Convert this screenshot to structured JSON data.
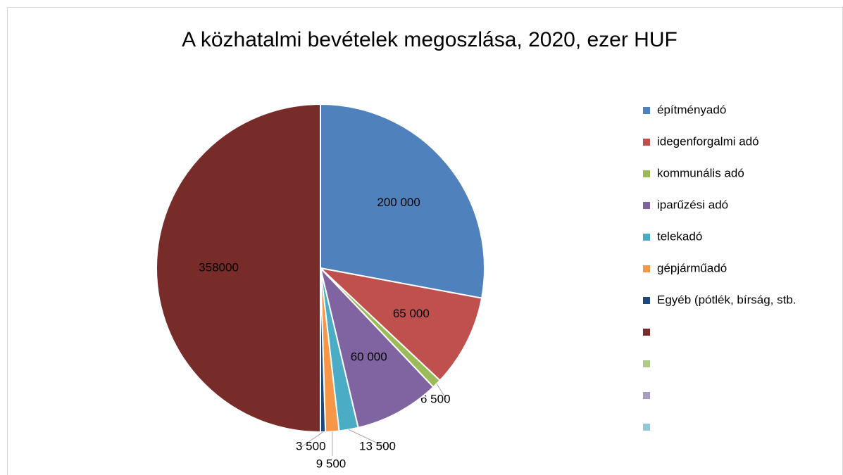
{
  "chart_data": {
    "type": "pie",
    "title": "A közhatalmi bevételek megoszlása, 2020, ezer HUF",
    "categories": [
      "építményadó",
      "idegenforgalmi adó",
      "kommunális adó",
      "iparűzési adó",
      "telekadó",
      "gépjárműadó",
      "Egyéb (pótlék, bírság, stb.",
      null,
      null,
      null,
      null
    ],
    "values": [
      200000,
      65000,
      6500,
      60000,
      13500,
      9500,
      3500,
      358000,
      0,
      0,
      0
    ],
    "value_labels": [
      "200 000",
      "65 000",
      "6 500",
      "60 000",
      "13 500",
      "9 500",
      "3 500",
      "358000",
      null,
      null,
      null
    ],
    "colors": [
      "#4f81bd",
      "#c0504d",
      "#9bbb59",
      "#8064a2",
      "#4bacc6",
      "#f79646",
      "#1f497d",
      "#772c2a",
      "#afc98a",
      "#aa9bc0",
      "#93c8d8"
    ],
    "legend": "right"
  }
}
